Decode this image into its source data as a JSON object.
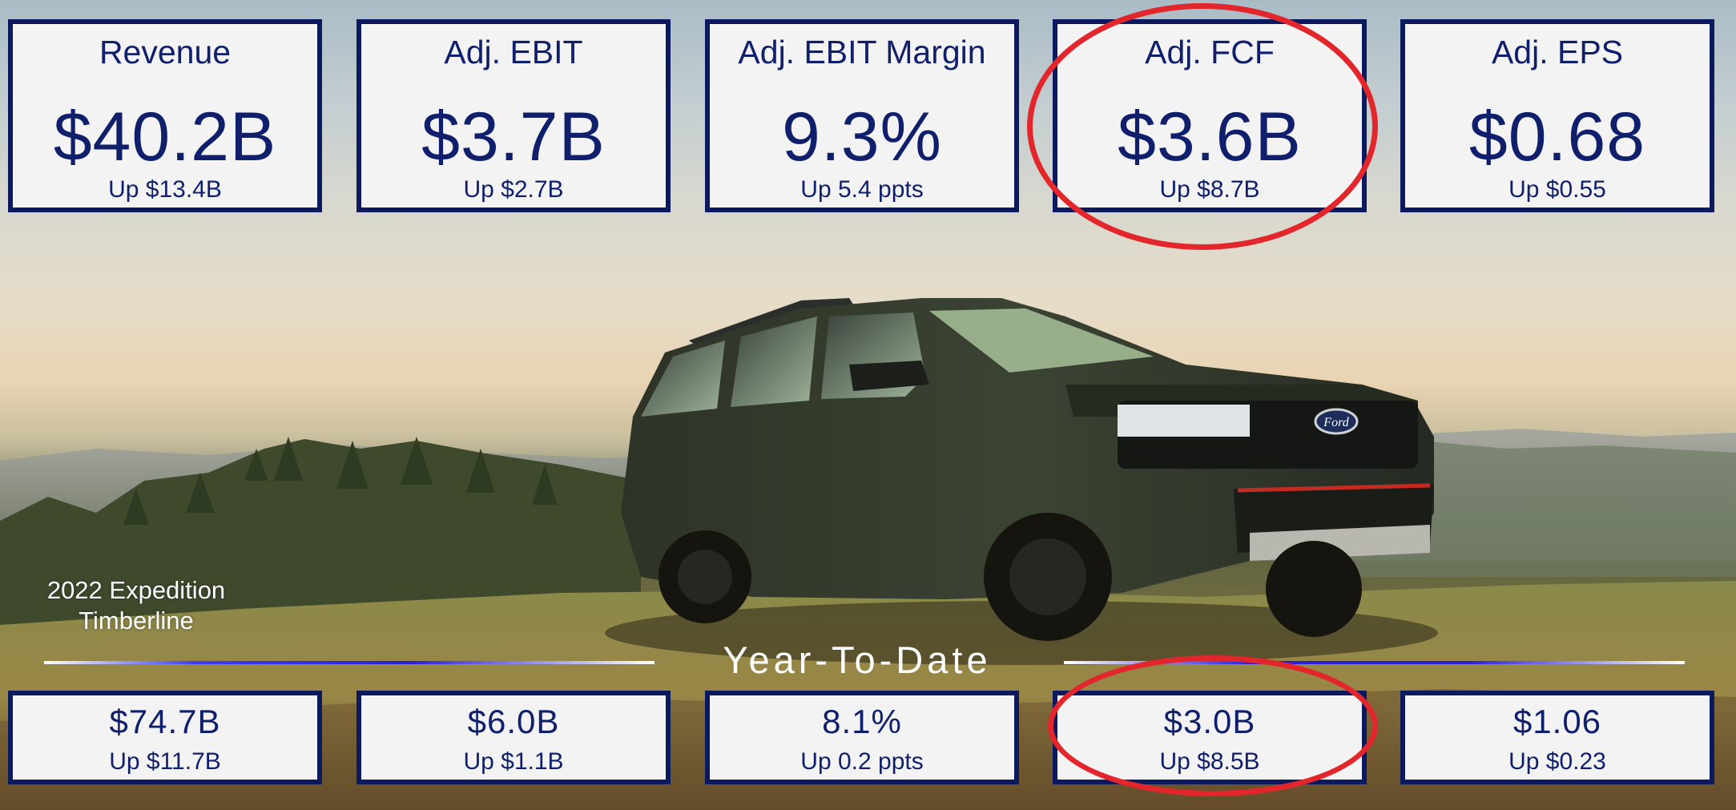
{
  "quarter": {
    "revenue": {
      "label": "Revenue",
      "value": "$40.2B",
      "delta": "Up $13.4B"
    },
    "adj_ebit": {
      "label": "Adj. EBIT",
      "value": "$3.7B",
      "delta": "Up $2.7B"
    },
    "adj_ebit_margin": {
      "label": "Adj. EBIT Margin",
      "value": "9.3%",
      "delta": "Up 5.4 ppts"
    },
    "adj_fcf": {
      "label": "Adj. FCF",
      "value": "$3.6B",
      "delta": "Up $8.7B"
    },
    "adj_eps": {
      "label": "Adj. EPS",
      "value": "$0.68",
      "delta": "Up $0.55"
    }
  },
  "ytd": {
    "title": "Year-To-Date",
    "revenue": {
      "value": "$74.7B",
      "delta": "Up $11.7B"
    },
    "adj_ebit": {
      "value": "$6.0B",
      "delta": "Up $1.1B"
    },
    "adj_ebit_margin": {
      "value": "8.1%",
      "delta": "Up 0.2 ppts"
    },
    "adj_fcf": {
      "value": "$3.0B",
      "delta": "Up $8.5B"
    },
    "adj_eps": {
      "value": "$1.06",
      "delta": "Up $0.23"
    }
  },
  "caption": {
    "line1": "2022 Expedition",
    "line2": "Timberline"
  },
  "vehicle": {
    "badge": "Ford"
  },
  "colors": {
    "card_border": "#0b1a5e",
    "card_text": "#0f1f6b",
    "highlight_circle": "#e3262b",
    "rule_accent": "#2a1fd8"
  }
}
